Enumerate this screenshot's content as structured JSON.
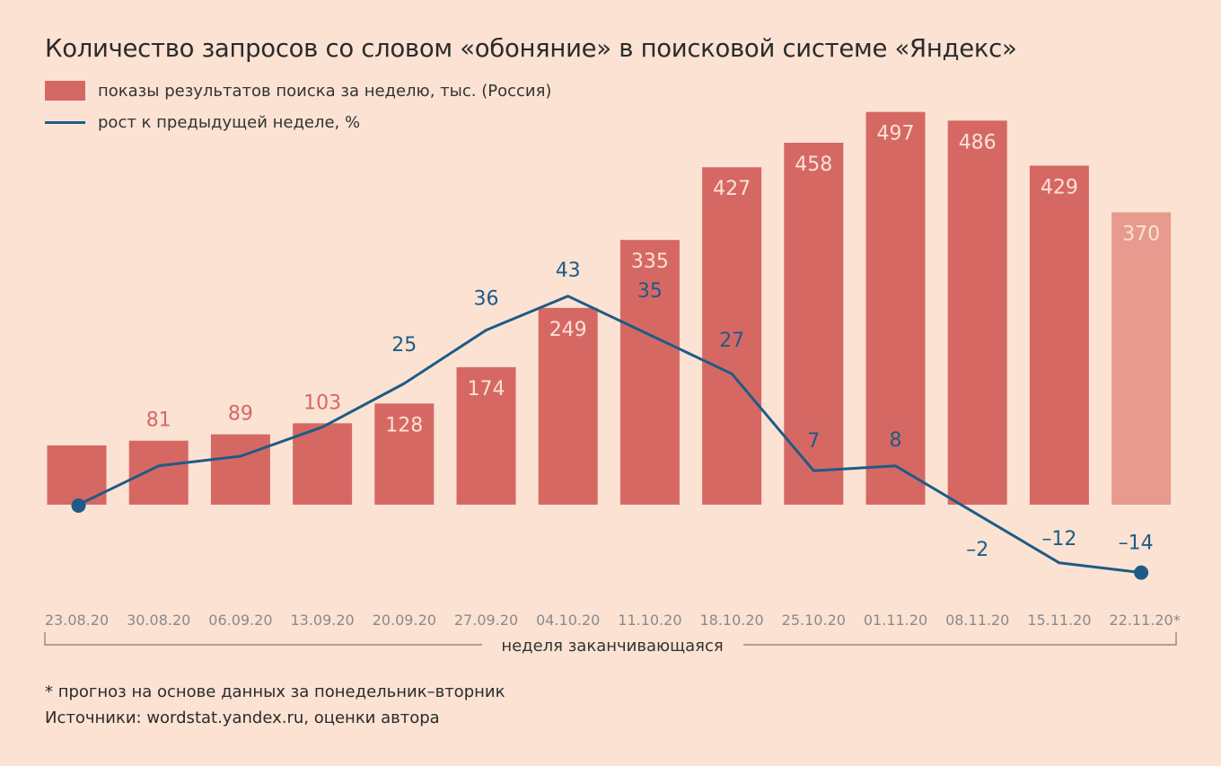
{
  "header": {
    "title": "Количество запросов со словом «обоняние» в поисковой системе «Яндекс»"
  },
  "legend": {
    "bars_label": "показы результатов поиска за неделю, тыс. (Россия)",
    "line_label": "рост к предыдущей неделе, %"
  },
  "footer": {
    "note": "* прогноз на основе данных за понедельник–вторник",
    "source": "Источники: wordstat.yandex.ru, оценки автора"
  },
  "colors": {
    "bar": "#d66864",
    "bar_forecast": "#e79a8d",
    "line": "#1e5b86",
    "bar_label_outside": "#d66864",
    "bar_label_inside": "#fbe2d3"
  },
  "chart_data": {
    "type": "bar",
    "xlabel": "неделя заканчивающаяся",
    "categories": [
      "23.08.20",
      "30.08.20",
      "06.09.20",
      "13.09.20",
      "20.09.20",
      "27.09.20",
      "04.10.20",
      "11.10.20",
      "18.10.20",
      "25.10.20",
      "01.11.20",
      "08.11.20",
      "15.11.20",
      "22.11.20*"
    ],
    "series": [
      {
        "name": "показы результатов поиска за неделю, тыс. (Россия)",
        "type": "bar",
        "values": [
          75,
          81,
          89,
          103,
          128,
          174,
          249,
          335,
          427,
          458,
          497,
          486,
          429,
          370
        ],
        "labels": [
          "",
          "81",
          "89",
          "103",
          "128",
          "174",
          "249",
          "335",
          "427",
          "458",
          "497",
          "486",
          "429",
          "370"
        ],
        "forecast_last": true
      },
      {
        "name": "рост к предыдущей неделе, %",
        "type": "line",
        "values": [
          null,
          8,
          10,
          16,
          25,
          36,
          43,
          35,
          27,
          7,
          8,
          -2,
          -12,
          -14
        ],
        "labels": [
          "",
          "",
          "",
          "",
          "25",
          "36",
          "43",
          "35",
          "27",
          "7",
          "8",
          "–2",
          "–12",
          "–14"
        ]
      }
    ]
  }
}
